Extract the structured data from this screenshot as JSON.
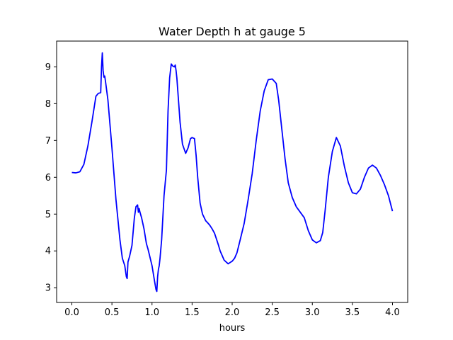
{
  "chart_data": {
    "type": "line",
    "title": "Water Depth h at gauge 5",
    "xlabel": "hours",
    "ylabel": "",
    "xlim": [
      -0.19,
      4.19
    ],
    "ylim": [
      2.6,
      9.7
    ],
    "xticks": [
      0.0,
      0.5,
      1.0,
      1.5,
      2.0,
      2.5,
      3.0,
      3.5,
      4.0
    ],
    "xtick_labels": [
      "0.0",
      "0.5",
      "1.0",
      "1.5",
      "2.0",
      "2.5",
      "3.0",
      "3.5",
      "4.0"
    ],
    "yticks": [
      3,
      4,
      5,
      6,
      7,
      8,
      9
    ],
    "ytick_labels": [
      "3",
      "4",
      "5",
      "6",
      "7",
      "8",
      "9"
    ],
    "grid": false,
    "series": [
      {
        "color": "#0000ff",
        "x": [
          0.0,
          0.05,
          0.1,
          0.15,
          0.2,
          0.25,
          0.3,
          0.33,
          0.36,
          0.37,
          0.38,
          0.39,
          0.4,
          0.41,
          0.42,
          0.45,
          0.5,
          0.55,
          0.6,
          0.63,
          0.66,
          0.68,
          0.69,
          0.7,
          0.72,
          0.75,
          0.78,
          0.8,
          0.82,
          0.83,
          0.84,
          0.85,
          0.87,
          0.9,
          0.93,
          0.95,
          1.0,
          1.03,
          1.05,
          1.06,
          1.07,
          1.08,
          1.09,
          1.1,
          1.12,
          1.15,
          1.18,
          1.2,
          1.22,
          1.24,
          1.26,
          1.28,
          1.29,
          1.3,
          1.31,
          1.32,
          1.35,
          1.38,
          1.42,
          1.45,
          1.48,
          1.5,
          1.53,
          1.55,
          1.57,
          1.6,
          1.63,
          1.67,
          1.7,
          1.72,
          1.75,
          1.78,
          1.8,
          1.83,
          1.85,
          1.9,
          1.95,
          2.0,
          2.03,
          2.06,
          2.1,
          2.15,
          2.2,
          2.25,
          2.3,
          2.35,
          2.4,
          2.45,
          2.5,
          2.55,
          2.58,
          2.62,
          2.66,
          2.7,
          2.75,
          2.8,
          2.85,
          2.9,
          2.95,
          3.0,
          3.05,
          3.1,
          3.13,
          3.16,
          3.2,
          3.25,
          3.3,
          3.35,
          3.4,
          3.45,
          3.5,
          3.55,
          3.6,
          3.65,
          3.7,
          3.75,
          3.8,
          3.85,
          3.9,
          3.95,
          4.0
        ],
        "y": [
          6.13,
          6.12,
          6.15,
          6.35,
          6.85,
          7.5,
          8.2,
          8.28,
          8.3,
          9.0,
          9.38,
          8.9,
          8.72,
          8.75,
          8.6,
          8.1,
          6.8,
          5.4,
          4.3,
          3.8,
          3.6,
          3.3,
          3.25,
          3.7,
          3.85,
          4.15,
          4.9,
          5.2,
          5.25,
          5.05,
          5.15,
          5.05,
          4.9,
          4.6,
          4.2,
          4.05,
          3.6,
          3.2,
          2.95,
          2.9,
          3.3,
          3.5,
          3.6,
          3.8,
          4.3,
          5.5,
          6.2,
          7.8,
          8.7,
          9.08,
          9.02,
          9.0,
          9.05,
          8.9,
          8.7,
          8.4,
          7.5,
          6.9,
          6.65,
          6.8,
          7.05,
          7.08,
          7.05,
          6.6,
          6.0,
          5.3,
          5.0,
          4.82,
          4.75,
          4.7,
          4.6,
          4.48,
          4.35,
          4.15,
          4.0,
          3.75,
          3.65,
          3.72,
          3.8,
          3.95,
          4.3,
          4.75,
          5.4,
          6.1,
          7.0,
          7.8,
          8.35,
          8.65,
          8.67,
          8.55,
          8.1,
          7.3,
          6.5,
          5.85,
          5.45,
          5.2,
          5.05,
          4.9,
          4.55,
          4.3,
          4.22,
          4.28,
          4.5,
          5.1,
          6.0,
          6.7,
          7.08,
          6.85,
          6.3,
          5.85,
          5.58,
          5.55,
          5.68,
          6.0,
          6.25,
          6.33,
          6.25,
          6.05,
          5.8,
          5.5,
          5.08
        ]
      }
    ]
  }
}
